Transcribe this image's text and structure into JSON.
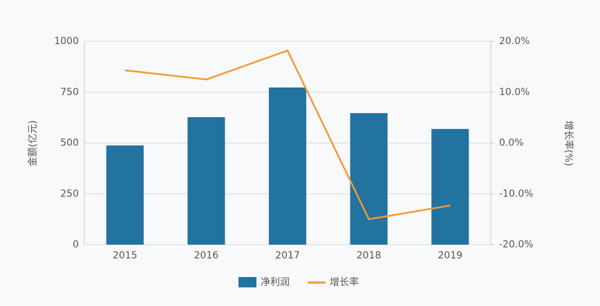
{
  "chart_data": {
    "type": "bar_line",
    "categories": [
      "2015",
      "2016",
      "2017",
      "2018",
      "2019"
    ],
    "series": [
      {
        "name": "净利润",
        "color": "#22739f",
        "type": "bar",
        "values": [
          488,
          627,
          773,
          647,
          569
        ]
      },
      {
        "name": "增长率",
        "color": "#f39a33",
        "type": "line",
        "axis": "y2",
        "values": [
          14.3,
          12.5,
          18.2,
          -15.0,
          -12.3
        ]
      }
    ],
    "ylabel": "金额(亿元)",
    "y2label": "增长率(%)",
    "ylim": [
      0,
      1000
    ],
    "yticks": [
      0,
      250,
      500,
      750,
      1000
    ],
    "y2lim": [
      -20,
      20
    ],
    "y2ticks": [
      {
        "value": -20,
        "label": "-20.0%"
      },
      {
        "value": -10,
        "label": "-10.0%"
      },
      {
        "value": 0,
        "label": "0.0%"
      },
      {
        "value": 10,
        "label": "10.0%"
      },
      {
        "value": 20,
        "label": "20.0%"
      }
    ],
    "grid": true,
    "legend": "bottom"
  }
}
